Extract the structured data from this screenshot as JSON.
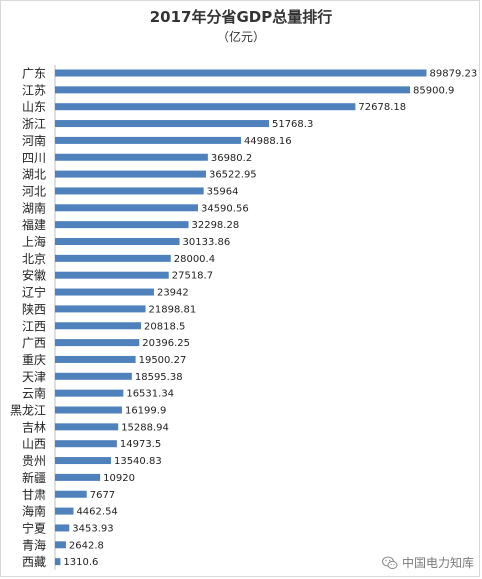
{
  "chart_data": {
    "type": "bar",
    "orientation": "horizontal",
    "title": "2017年分省GDP总量排行",
    "subtitle": "（亿元）",
    "categories": [
      "广东",
      "江苏",
      "山东",
      "浙江",
      "河南",
      "四川",
      "湖北",
      "河北",
      "湖南",
      "福建",
      "上海",
      "北京",
      "安徽",
      "辽宁",
      "陕西",
      "江西",
      "广西",
      "重庆",
      "天津",
      "云南",
      "黑龙江",
      "吉林",
      "山西",
      "贵州",
      "新疆",
      "甘肃",
      "海南",
      "宁夏",
      "青海",
      "西藏"
    ],
    "values": [
      89879.23,
      85900.9,
      72678.18,
      51768.3,
      44988.16,
      36980.2,
      36522.95,
      35964,
      34590.56,
      32298.28,
      30133.86,
      28000.4,
      27518.7,
      23942,
      21898.81,
      20818.5,
      20396.25,
      19500.27,
      18595.38,
      16531.34,
      16199.9,
      15288.94,
      14973.5,
      13540.83,
      10920,
      7677,
      4462.54,
      3453.93,
      2642.8,
      1310.6
    ],
    "value_labels": [
      "89879.23",
      "85900.9",
      "72678.18",
      "51768.3",
      "44988.16",
      "36980.2",
      "36522.95",
      "35964",
      "34590.56",
      "32298.28",
      "30133.86",
      "28000.4",
      "27518.7",
      "23942",
      "21898.81",
      "20818.5",
      "20396.25",
      "19500.27",
      "18595.38",
      "16531.34",
      "16199.9",
      "15288.94",
      "14973.5",
      "13540.83",
      "10920",
      "7677",
      "4462.54",
      "3453.93",
      "2642.8",
      "1310.6"
    ],
    "xlim": [
      0,
      90000
    ],
    "grid": false,
    "legend": "none",
    "bar_color": "#4f81bd"
  },
  "watermark": {
    "text": "中国电力知库",
    "icon": "wechat-icon"
  }
}
